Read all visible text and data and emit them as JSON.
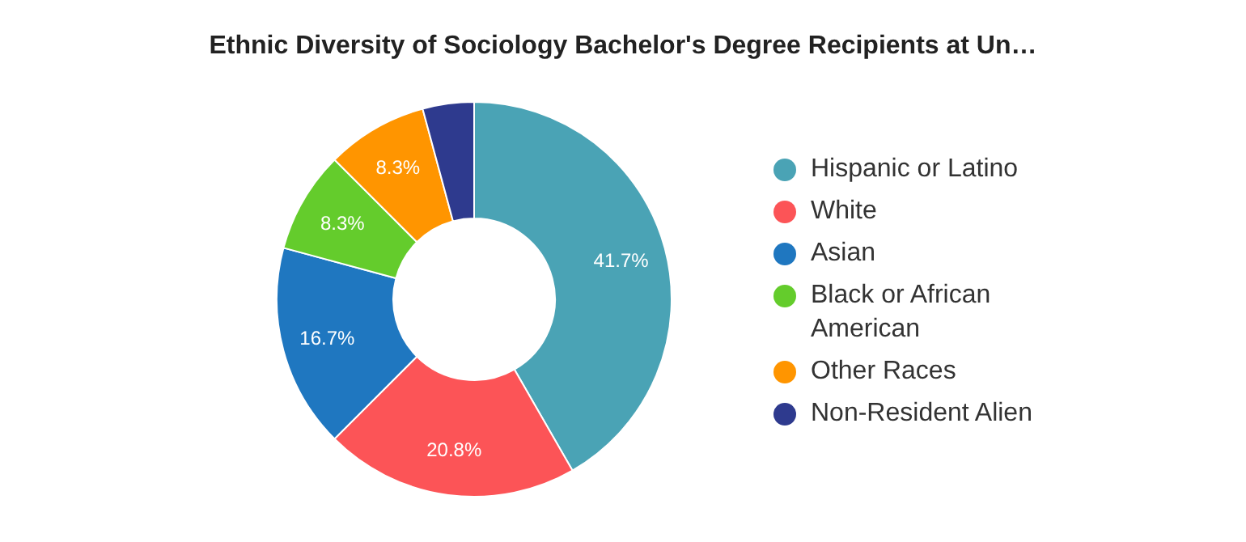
{
  "chart_data": {
    "type": "donut",
    "title": "Ethnic Diversity of Sociology Bachelor's Degree Recipients at Un…",
    "categories": [
      "Hispanic or Latino",
      "White",
      "Asian",
      "Black or African American",
      "Other Races",
      "Non-Resident Alien"
    ],
    "values": [
      41.7,
      20.8,
      16.7,
      8.3,
      8.3,
      4.2
    ],
    "value_labels": [
      "41.7%",
      "20.8%",
      "16.7%",
      "8.3%",
      "8.3%",
      null
    ],
    "colors": [
      "#4aa3b5",
      "#fc5457",
      "#1f77c0",
      "#64cc2c",
      "#ff9500",
      "#2e3a8e"
    ],
    "legend": "right"
  }
}
